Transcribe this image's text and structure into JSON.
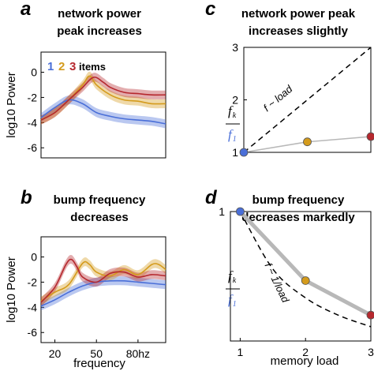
{
  "panels": [
    {
      "letter": "a",
      "title_lines": [
        "network power",
        "peak increases"
      ]
    },
    {
      "letter": "b",
      "title_lines": [
        "bump frequency",
        "decreases"
      ]
    },
    {
      "letter": "c",
      "title_lines": [
        "network power peak",
        "increases slightly"
      ]
    },
    {
      "letter": "d",
      "title_lines": [
        "bump frequency",
        "decreases markedly"
      ]
    }
  ],
  "legend": {
    "numbers": [
      "1",
      "2",
      "3"
    ],
    "suffix": "items"
  },
  "colors": {
    "one": "#4a6fd8",
    "two": "#d49b1c",
    "three": "#b5282e",
    "gray": "#b8b8b8"
  },
  "ratio_label": {
    "numerator": "f",
    "numerator_sub": "k",
    "denominator": "f",
    "denominator_sub": "1"
  },
  "chart_data": [
    {
      "type": "line",
      "panel": "a",
      "ylabel": "log10 Power",
      "yticks": [
        "0",
        "-2",
        "-4",
        "-6"
      ],
      "ylim": [
        -6.8,
        1.6
      ],
      "xlim": [
        10,
        100
      ],
      "series": [
        {
          "name": "1",
          "x": [
            10,
            20,
            30,
            40,
            50,
            60,
            70,
            80,
            90,
            100
          ],
          "y": [
            -3.6,
            -2.8,
            -2.2,
            -2.5,
            -3.2,
            -3.5,
            -3.7,
            -3.8,
            -3.9,
            -4.1
          ]
        },
        {
          "name": "2",
          "x": [
            10,
            20,
            30,
            40,
            45,
            50,
            60,
            70,
            80,
            90,
            100
          ],
          "y": [
            -3.8,
            -3.2,
            -2.2,
            -1.0,
            -0.3,
            -1.0,
            -1.8,
            -2.2,
            -2.3,
            -2.5,
            -2.5
          ]
        },
        {
          "name": "3",
          "x": [
            10,
            20,
            30,
            40,
            48,
            55,
            60,
            70,
            80,
            90,
            100
          ],
          "y": [
            -3.8,
            -3.2,
            -2.2,
            -1.2,
            -0.4,
            -0.8,
            -1.2,
            -1.6,
            -1.7,
            -1.8,
            -1.8
          ]
        }
      ]
    },
    {
      "type": "line",
      "panel": "b",
      "ylabel": "log10 Power",
      "xlabel": "frequency",
      "xticks": [
        "20",
        "50",
        "80hz"
      ],
      "xtick_values": [
        20,
        50,
        80
      ],
      "yticks": [
        "0",
        "-2",
        "-4",
        "-6"
      ],
      "ylim": [
        -6.8,
        1.6
      ],
      "xlim": [
        10,
        100
      ],
      "series": [
        {
          "name": "1",
          "x": [
            10,
            20,
            30,
            40,
            50,
            60,
            70,
            80,
            90,
            100
          ],
          "y": [
            -3.9,
            -3.4,
            -2.8,
            -2.3,
            -2.0,
            -1.9,
            -1.9,
            -2.0,
            -2.1,
            -2.2
          ]
        },
        {
          "name": "2",
          "x": [
            10,
            20,
            30,
            40,
            45,
            50,
            60,
            70,
            80,
            90,
            95,
            100
          ],
          "y": [
            -3.5,
            -2.8,
            -2.2,
            -0.5,
            -0.6,
            -1.2,
            -1.5,
            -1.0,
            -1.4,
            -0.6,
            -0.6,
            -1.0
          ]
        },
        {
          "name": "3",
          "x": [
            10,
            20,
            28,
            32,
            36,
            40,
            50,
            60,
            70,
            80,
            90,
            100
          ],
          "y": [
            -3.6,
            -2.4,
            -0.6,
            -0.2,
            -0.8,
            -1.6,
            -2.0,
            -1.3,
            -1.2,
            -1.6,
            -1.4,
            -1.5
          ]
        }
      ]
    },
    {
      "type": "scatter",
      "panel": "c",
      "ylabel": "",
      "yticks": [
        "1",
        "2",
        "3"
      ],
      "ylim": [
        1,
        3
      ],
      "xlim": [
        1,
        3
      ],
      "annotation": "f ~ load",
      "reference_line": {
        "x": [
          1,
          3
        ],
        "y": [
          1,
          3
        ]
      },
      "series": [
        {
          "name": "1",
          "x": [
            1
          ],
          "y": [
            1.0
          ]
        },
        {
          "name": "2",
          "x": [
            2
          ],
          "y": [
            1.2
          ]
        },
        {
          "name": "3",
          "x": [
            3
          ],
          "y": [
            1.3
          ]
        }
      ]
    },
    {
      "type": "scatter",
      "panel": "d",
      "xlabel": "memory load",
      "xticks": [
        "1",
        "2",
        "3"
      ],
      "yticks": [
        "1"
      ],
      "ylim": [
        0.25,
        1.0
      ],
      "xlim": [
        0.85,
        3.0
      ],
      "annotation": "f ~ 1/load",
      "reference_line": {
        "x": [
          1,
          1.5,
          2,
          2.5,
          3
        ],
        "y": [
          1.0,
          0.667,
          0.5,
          0.4,
          0.333
        ]
      },
      "series": [
        {
          "name": "1",
          "x": [
            1
          ],
          "y": [
            1.0
          ]
        },
        {
          "name": "2",
          "x": [
            2
          ],
          "y": [
            0.6
          ]
        },
        {
          "name": "3",
          "x": [
            3
          ],
          "y": [
            0.4
          ]
        }
      ]
    }
  ]
}
